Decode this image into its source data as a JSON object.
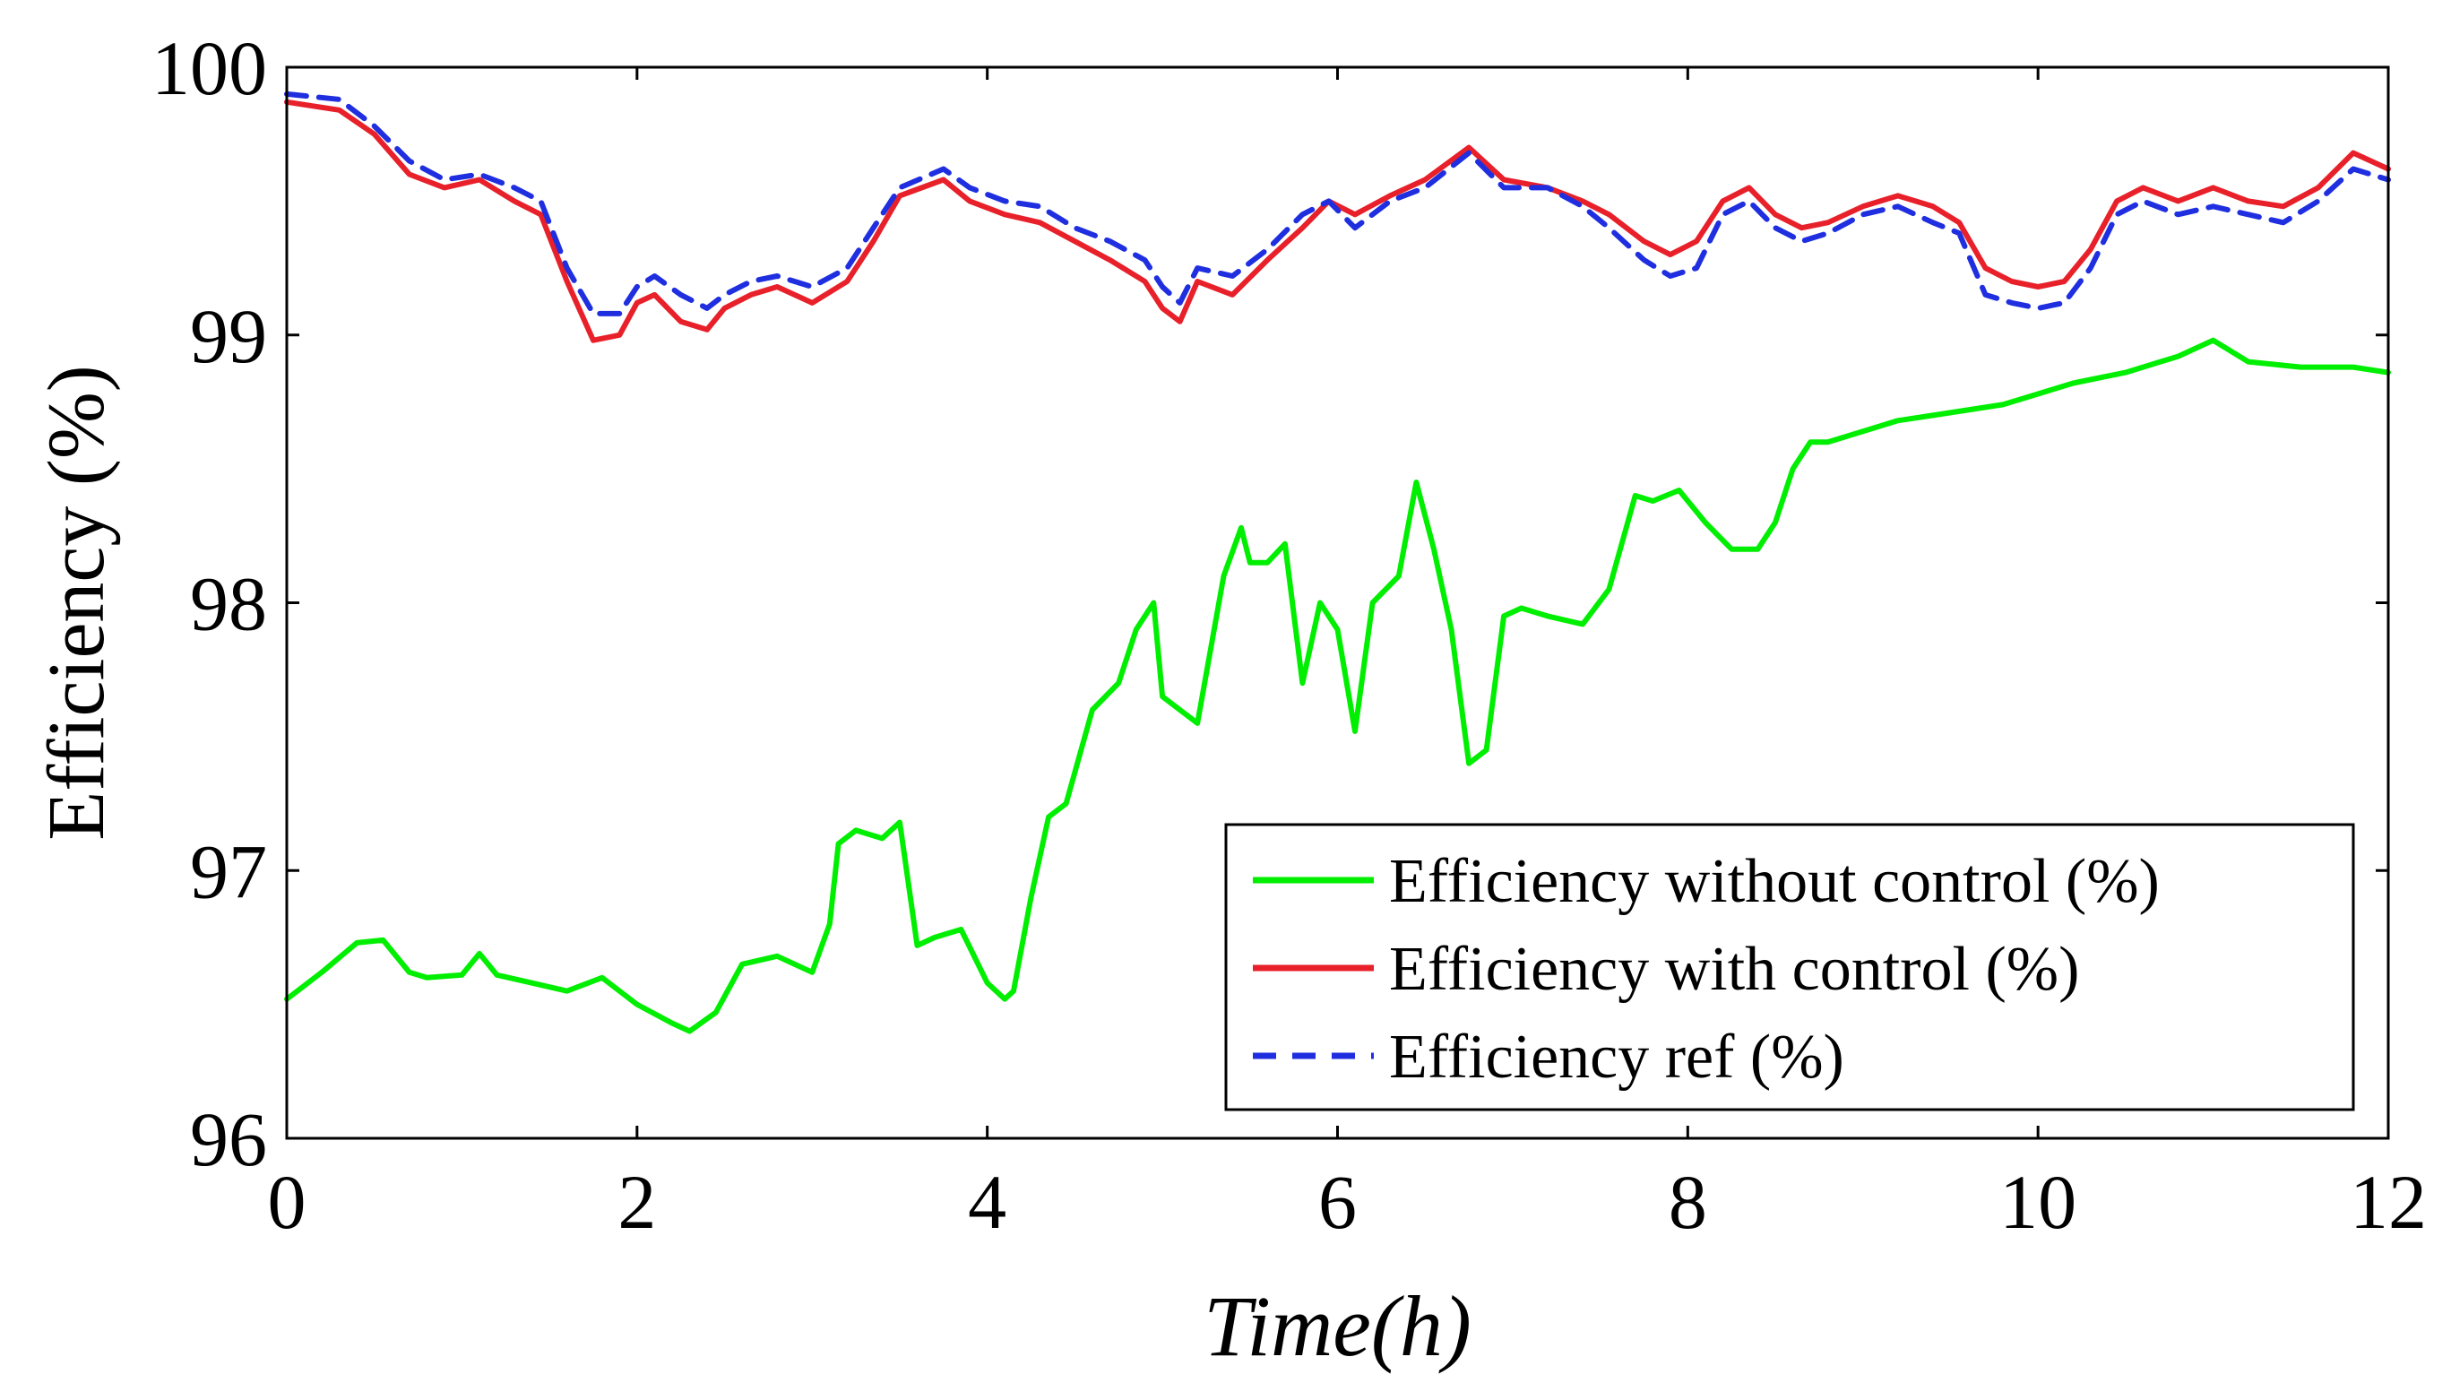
{
  "chart_data": {
    "type": "line",
    "title": "",
    "xlabel": "Time(h)",
    "ylabel": "Efficiency (%)",
    "xlim": [
      0,
      12
    ],
    "ylim": [
      96,
      100
    ],
    "xticks": [
      0,
      2,
      4,
      6,
      8,
      10,
      12
    ],
    "yticks": [
      96,
      97,
      98,
      99,
      100
    ],
    "grid": false,
    "legend_position": "bottom-right",
    "series": [
      {
        "name": "Efficiency without control (%)",
        "color": "#00ee00",
        "style": "solid",
        "x": [
          0,
          0.2,
          0.4,
          0.55,
          0.7,
          0.8,
          1.0,
          1.1,
          1.2,
          1.4,
          1.6,
          1.8,
          2.0,
          2.2,
          2.3,
          2.45,
          2.6,
          2.8,
          3.0,
          3.1,
          3.15,
          3.25,
          3.4,
          3.5,
          3.6,
          3.7,
          3.85,
          4.0,
          4.1,
          4.15,
          4.25,
          4.35,
          4.45,
          4.6,
          4.75,
          4.85,
          4.95,
          5.0,
          5.1,
          5.2,
          5.35,
          5.45,
          5.5,
          5.6,
          5.7,
          5.8,
          5.9,
          6.0,
          6.1,
          6.2,
          6.35,
          6.45,
          6.55,
          6.65,
          6.75,
          6.85,
          6.95,
          7.05,
          7.2,
          7.4,
          7.55,
          7.7,
          7.8,
          7.95,
          8.1,
          8.25,
          8.4,
          8.5,
          8.6,
          8.7,
          8.8,
          9.0,
          9.2,
          9.4,
          9.6,
          9.8,
          10.0,
          10.2,
          10.5,
          10.8,
          11.0,
          11.2,
          11.5,
          11.8,
          12.0
        ],
        "values": [
          96.52,
          96.62,
          96.73,
          96.74,
          96.62,
          96.6,
          96.61,
          96.69,
          96.61,
          96.58,
          96.55,
          96.6,
          96.5,
          96.43,
          96.4,
          96.47,
          96.65,
          96.68,
          96.62,
          96.8,
          97.1,
          97.15,
          97.12,
          97.18,
          96.72,
          96.75,
          96.78,
          96.58,
          96.52,
          96.55,
          96.9,
          97.2,
          97.25,
          97.6,
          97.7,
          97.9,
          98.0,
          97.65,
          97.6,
          97.55,
          98.1,
          98.28,
          98.15,
          98.15,
          98.22,
          97.7,
          98.0,
          97.9,
          97.52,
          98.0,
          98.1,
          98.45,
          98.2,
          97.9,
          97.4,
          97.45,
          97.95,
          97.98,
          97.95,
          97.92,
          98.05,
          98.4,
          98.38,
          98.42,
          98.3,
          98.2,
          98.2,
          98.3,
          98.5,
          98.6,
          98.6,
          98.64,
          98.68,
          98.7,
          98.72,
          98.74,
          98.78,
          98.82,
          98.86,
          98.92,
          98.98,
          98.9,
          98.88,
          98.88,
          98.86
        ]
      },
      {
        "name": "Efficiency with control (%)",
        "color": "#e8202a",
        "style": "solid",
        "x": [
          0,
          0.3,
          0.5,
          0.7,
          0.9,
          1.1,
          1.3,
          1.45,
          1.6,
          1.75,
          1.9,
          2.0,
          2.1,
          2.25,
          2.4,
          2.5,
          2.65,
          2.8,
          3.0,
          3.2,
          3.35,
          3.5,
          3.75,
          3.9,
          4.1,
          4.3,
          4.5,
          4.7,
          4.9,
          5.0,
          5.1,
          5.2,
          5.4,
          5.6,
          5.8,
          5.95,
          6.1,
          6.3,
          6.5,
          6.75,
          6.95,
          7.2,
          7.4,
          7.55,
          7.75,
          7.9,
          8.05,
          8.2,
          8.35,
          8.5,
          8.65,
          8.8,
          9.0,
          9.2,
          9.4,
          9.55,
          9.7,
          9.85,
          10.0,
          10.15,
          10.3,
          10.45,
          10.6,
          10.8,
          11.0,
          11.2,
          11.4,
          11.6,
          11.8,
          12.0
        ],
        "values": [
          99.87,
          99.84,
          99.75,
          99.6,
          99.55,
          99.58,
          99.5,
          99.45,
          99.2,
          98.98,
          99.0,
          99.12,
          99.15,
          99.05,
          99.02,
          99.1,
          99.15,
          99.18,
          99.12,
          99.2,
          99.35,
          99.52,
          99.58,
          99.5,
          99.45,
          99.42,
          99.35,
          99.28,
          99.2,
          99.1,
          99.05,
          99.2,
          99.15,
          99.28,
          99.4,
          99.5,
          99.45,
          99.52,
          99.58,
          99.7,
          99.58,
          99.55,
          99.5,
          99.45,
          99.35,
          99.3,
          99.35,
          99.5,
          99.55,
          99.45,
          99.4,
          99.42,
          99.48,
          99.52,
          99.48,
          99.42,
          99.25,
          99.2,
          99.18,
          99.2,
          99.32,
          99.5,
          99.55,
          99.5,
          99.55,
          99.5,
          99.48,
          99.55,
          99.68,
          99.62
        ]
      },
      {
        "name": "Efficiency ref (%)",
        "color": "#1f2fe0",
        "style": "dashed",
        "x": [
          0,
          0.3,
          0.5,
          0.7,
          0.9,
          1.1,
          1.3,
          1.45,
          1.6,
          1.75,
          1.9,
          2.0,
          2.1,
          2.25,
          2.4,
          2.5,
          2.65,
          2.8,
          3.0,
          3.2,
          3.35,
          3.5,
          3.75,
          3.9,
          4.1,
          4.3,
          4.5,
          4.7,
          4.9,
          5.0,
          5.1,
          5.2,
          5.4,
          5.6,
          5.8,
          5.95,
          6.1,
          6.3,
          6.5,
          6.75,
          6.95,
          7.2,
          7.4,
          7.55,
          7.75,
          7.9,
          8.05,
          8.2,
          8.35,
          8.5,
          8.65,
          8.8,
          9.0,
          9.2,
          9.4,
          9.55,
          9.7,
          9.85,
          10.0,
          10.15,
          10.3,
          10.45,
          10.6,
          10.8,
          11.0,
          11.2,
          11.4,
          11.6,
          11.8,
          12.0
        ],
        "values": [
          99.9,
          99.88,
          99.78,
          99.65,
          99.58,
          99.6,
          99.55,
          99.5,
          99.25,
          99.08,
          99.08,
          99.18,
          99.22,
          99.15,
          99.1,
          99.15,
          99.2,
          99.22,
          99.18,
          99.25,
          99.4,
          99.55,
          99.62,
          99.55,
          99.5,
          99.48,
          99.4,
          99.35,
          99.28,
          99.18,
          99.12,
          99.25,
          99.22,
          99.32,
          99.45,
          99.5,
          99.4,
          99.5,
          99.55,
          99.68,
          99.55,
          99.55,
          99.48,
          99.4,
          99.28,
          99.22,
          99.25,
          99.45,
          99.5,
          99.4,
          99.35,
          99.38,
          99.45,
          99.48,
          99.42,
          99.38,
          99.15,
          99.12,
          99.1,
          99.12,
          99.25,
          99.45,
          99.5,
          99.45,
          99.48,
          99.45,
          99.42,
          99.5,
          99.62,
          99.58
        ]
      }
    ]
  }
}
